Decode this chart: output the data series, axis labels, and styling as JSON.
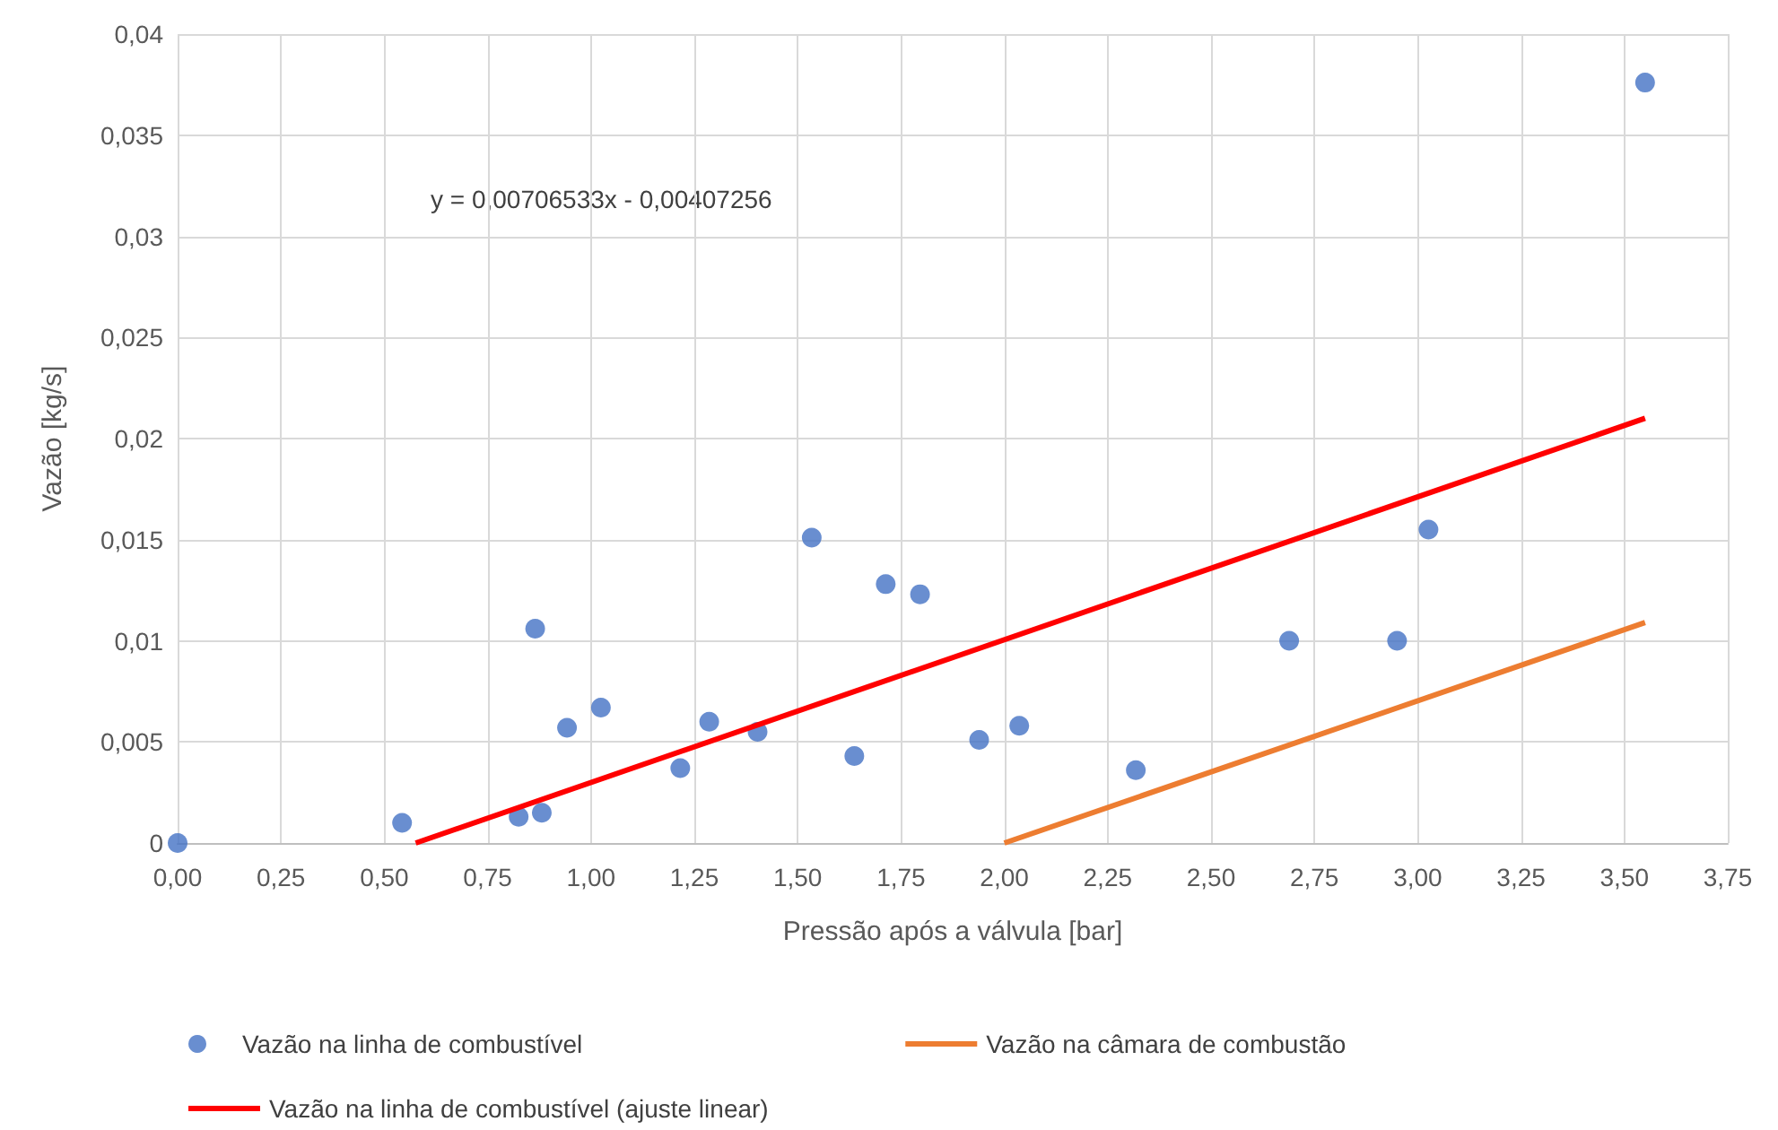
{
  "chart_data": {
    "type": "scatter",
    "xlabel": "Pressão após a válvula [bar]",
    "ylabel": "Vazão [kg/s]",
    "annotations": [
      "y = 0,00706533x - 0,00407256"
    ],
    "series": [
      {
        "name": "Vazão na linha de combustível",
        "color": "#4472c4",
        "marker": "circle",
        "x": [
          0,
          0.543,
          0.825,
          0.881,
          0.865,
          0.942,
          1.024,
          1.216,
          1.286,
          1.403,
          1.534,
          1.637,
          1.713,
          1.796,
          1.939,
          2.036,
          2.318,
          2.689,
          2.95,
          3.026,
          3.55
        ],
        "values": [
          0,
          0.001,
          0.0013,
          0.0015,
          0.0106,
          0.0057,
          0.0067,
          0.0037,
          0.006,
          0.0055,
          0.0151,
          0.0043,
          0.0128,
          0.0123,
          0.0051,
          0.0058,
          0.0036,
          0.01,
          0.01,
          0.0155,
          0.0376
        ]
      },
      {
        "name": "Vazão na câmara de combustão",
        "type": "line",
        "color": "#ed7d31",
        "marker": "none",
        "x": [
          2.0,
          3.55
        ],
        "values": [
          0,
          0.0109
        ]
      },
      {
        "name": "Vazão na linha de combustível (ajuste linear)",
        "type": "line",
        "color": "#ff0000",
        "marker": "none",
        "x": [
          0.576,
          3.55
        ],
        "values": [
          0,
          0.021
        ]
      }
    ],
    "xlim": [
      0,
      3.75
    ],
    "xticks": [
      {
        "value": 0,
        "label": "0,00"
      },
      {
        "value": 0.25,
        "label": "0,25"
      },
      {
        "value": 0.5,
        "label": "0,50"
      },
      {
        "value": 0.75,
        "label": "0,75"
      },
      {
        "value": 1,
        "label": "1,00"
      },
      {
        "value": 1.25,
        "label": "1,25"
      },
      {
        "value": 1.5,
        "label": "1,50"
      },
      {
        "value": 1.75,
        "label": "1,75"
      },
      {
        "value": 2,
        "label": "2,00"
      },
      {
        "value": 2.25,
        "label": "2,25"
      },
      {
        "value": 2.5,
        "label": "2,50"
      },
      {
        "value": 2.75,
        "label": "2,75"
      },
      {
        "value": 3,
        "label": "3,00"
      },
      {
        "value": 3.25,
        "label": "3,25"
      },
      {
        "value": 3.5,
        "label": "3,50"
      },
      {
        "value": 3.75,
        "label": "3,75"
      }
    ],
    "ylim": [
      0,
      0.04
    ],
    "yticks": [
      0,
      {
        "value": 0.005,
        "label": "0,005"
      },
      {
        "value": 0.01,
        "label": "0,01"
      },
      {
        "value": 0.015,
        "label": "0,015"
      },
      {
        "value": 0.02,
        "label": "0,02"
      },
      {
        "value": 0.025,
        "label": "0,025"
      },
      {
        "value": 0.03,
        "label": "0,03"
      },
      {
        "value": 0.035,
        "label": "0,035"
      },
      {
        "value": 0.04,
        "label": "0,04"
      }
    ],
    "grid": true,
    "legend": "bottom"
  }
}
